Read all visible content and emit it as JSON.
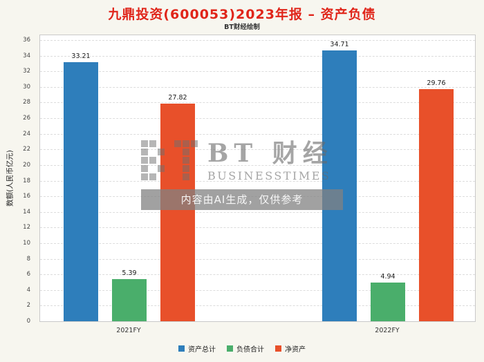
{
  "title": "九鼎投资(600053)2023年报 – 资产负债",
  "subtitle": "BT财经绘制",
  "watermark": {
    "brand_cn": "BT 财经",
    "brand_en": "BUSINESSTIMES",
    "notice": "内容由AI生成，仅供参考"
  },
  "colors": {
    "title_red": "#e0251a",
    "asset_blue": "#2e7ebb",
    "liability_green": "#4aae6b",
    "net_asset_orange": "#e8502a"
  },
  "chart_data": {
    "type": "bar",
    "title": "九鼎投资(600053)2023年报 – 资产负债",
    "subtitle": "BT财经绘制",
    "categories": [
      "2021FY",
      "2022FY"
    ],
    "series": [
      {
        "name": "资产总计",
        "color": "#2e7ebb",
        "values": [
          33.21,
          34.71
        ]
      },
      {
        "name": "负债合计",
        "color": "#4aae6b",
        "values": [
          5.39,
          4.94
        ]
      },
      {
        "name": "净资产",
        "color": "#e8502a",
        "values": [
          27.82,
          29.76
        ]
      }
    ],
    "xlabel": "",
    "ylabel": "数额(人民币亿元)",
    "ylim": [
      0,
      36
    ],
    "ytick_step": 2,
    "grid": true,
    "grid_style": "dashed",
    "legend_position": "bottom",
    "value_labels_shown": true
  }
}
